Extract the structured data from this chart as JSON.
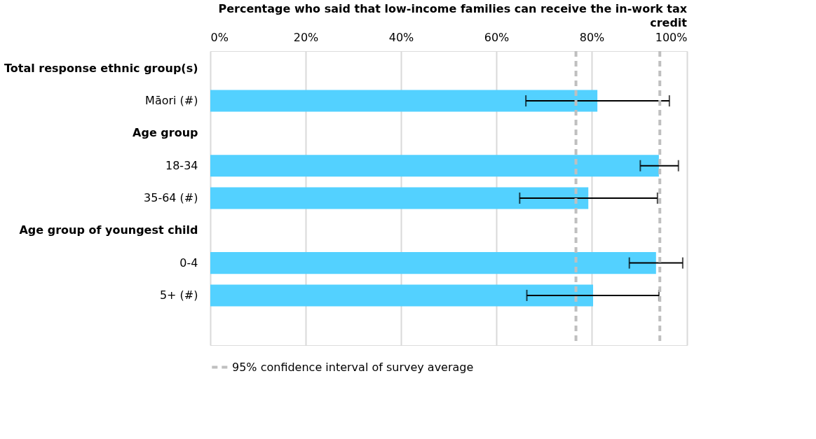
{
  "chart_data": {
    "type": "bar",
    "orientation": "horizontal",
    "title": "Percentage who said that low-income families can receive the in-work tax credit",
    "categories": [
      "Total response ethnic group(s)",
      "Māori (#)",
      "Age group",
      "18-34",
      "35-64 (#)",
      "Age group of youngest child",
      "0-4",
      "5+ (#)",
      null
    ],
    "values": [
      null,
      81.2,
      null,
      94.1,
      79.3,
      null,
      93.5,
      80.3,
      null
    ],
    "errors": [
      null,
      [
        66.2,
        96.3
      ],
      null,
      [
        90.2,
        98.2
      ],
      [
        64.9,
        93.8
      ],
      null,
      [
        87.9,
        99.1
      ],
      [
        66.4,
        94.1
      ],
      null
    ],
    "color": "#53d1ff",
    "xlim": [
      0,
      100
    ],
    "xticks": [
      {
        "value": 0,
        "label": "0%"
      },
      {
        "value": 20,
        "label": "20%"
      },
      {
        "value": 40,
        "label": "40%"
      },
      {
        "value": 60,
        "label": "60%"
      },
      {
        "value": 80,
        "label": "80%"
      },
      {
        "value": 100,
        "label": "100%"
      }
    ],
    "grid": "x",
    "legend": "bottom",
    "ref_lines": [
      {
        "axis": "x",
        "value": 76.7,
        "label": "95% confidence interval of survey average",
        "color": "#bfbfbf",
        "line_style": "dashed"
      },
      {
        "axis": "x",
        "value": 94.3,
        "color": "#bfbfbf",
        "line_style": "dashed"
      }
    ]
  }
}
